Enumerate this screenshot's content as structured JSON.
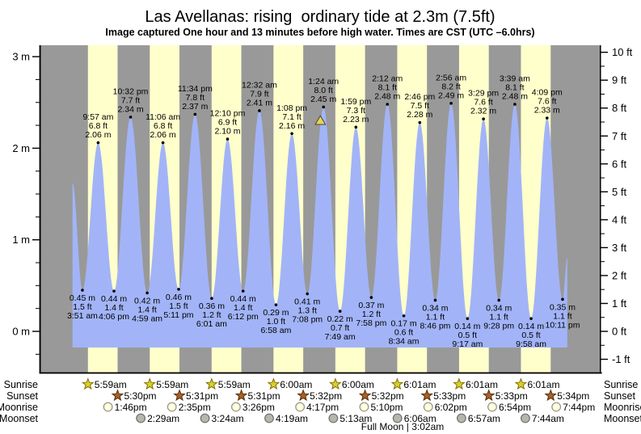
{
  "title": "Las Avellanas: rising  ordinary tide at 2.3m (7.5ft)",
  "subtitle": "Image captured One hour and 13 minutes before high water. Times are CST (UTC –6.0hrs)",
  "chart_data": {
    "type": "area",
    "title": "Las Avellanas: rising  ordinary tide at 2.3m (7.5ft)",
    "days": 8,
    "legend_position": "none",
    "grid": false,
    "ylim_m": [
      -0.46,
      3.13
    ],
    "colors": {
      "night_gray": "#999999",
      "day_yellow": "#ffffcc",
      "tide_fill": "#a2b4f7",
      "marker_yellow": "#e8d44c",
      "axis": "#000000",
      "sunrise_star_fill": "#ddcf2a",
      "sunrise_star_stroke": "#7d7004",
      "sunset_star_fill": "#aa5f28",
      "sunset_star_stroke": "#54300a",
      "moonrise_fill": "#ffffd9",
      "moonrise_stroke": "#8f8f8f",
      "moonset_fill": "#b6b6ad",
      "moonset_stroke": "#6e6e66"
    },
    "y_axis": {
      "left_ticks": [
        {
          "v": 0,
          "label": "0 m"
        },
        {
          "v": 1,
          "label": "1 m"
        },
        {
          "v": 2,
          "label": "2 m"
        },
        {
          "v": 3,
          "label": "3 m"
        }
      ],
      "right_ticks": [
        {
          "v": -1,
          "label": "-1 ft"
        },
        {
          "v": 0,
          "label": "0 ft"
        },
        {
          "v": 1,
          "label": "1 ft"
        },
        {
          "v": 2,
          "label": "2 ft"
        },
        {
          "v": 3,
          "label": "3 ft"
        },
        {
          "v": 4,
          "label": "4 ft"
        },
        {
          "v": 5,
          "label": "5 ft"
        },
        {
          "v": 6,
          "label": "6 ft"
        },
        {
          "v": 7,
          "label": "7 ft"
        },
        {
          "v": 8,
          "label": "8 ft"
        },
        {
          "v": 9,
          "label": "9 ft"
        },
        {
          "v": 10,
          "label": "10 ft"
        }
      ]
    },
    "curve_edge": {
      "start_height_m": 1.62,
      "end_height_m": 0.8
    },
    "current_marker": {
      "day": 4,
      "time": "12:11 am",
      "height_m": 2.3
    },
    "tide_events": [
      {
        "day": 0,
        "type": "low",
        "time": "3:51 am",
        "ft": "1.5 ft",
        "m": "0.45 m"
      },
      {
        "day": 0,
        "type": "high",
        "time": "9:57 am",
        "ft": "6.8 ft",
        "m": "2.06 m"
      },
      {
        "day": 0,
        "type": "low",
        "time": "4:06 pm",
        "ft": "1.4 ft",
        "m": "0.44 m"
      },
      {
        "day": 0,
        "type": "high",
        "time": "10:32 pm",
        "ft": "7.7 ft",
        "m": "2.34 m"
      },
      {
        "day": 1,
        "type": "low",
        "time": "4:59 am",
        "ft": "1.4 ft",
        "m": "0.42 m"
      },
      {
        "day": 1,
        "type": "high",
        "time": "11:06 am",
        "ft": "6.8 ft",
        "m": "2.06 m"
      },
      {
        "day": 1,
        "type": "low",
        "time": "5:11 pm",
        "ft": "1.5 ft",
        "m": "0.46 m"
      },
      {
        "day": 1,
        "type": "high",
        "time": "11:34 pm",
        "ft": "7.8 ft",
        "m": "2.37 m"
      },
      {
        "day": 2,
        "type": "low",
        "time": "6:01 am",
        "ft": "1.2 ft",
        "m": "0.36 m"
      },
      {
        "day": 2,
        "type": "high",
        "time": "12:10 pm",
        "ft": "6.9 ft",
        "m": "2.10 m"
      },
      {
        "day": 2,
        "type": "low",
        "time": "6:12 pm",
        "ft": "1.4 ft",
        "m": "0.44 m"
      },
      {
        "day": 3,
        "type": "high",
        "time": "12:32 am",
        "ft": "7.9 ft",
        "m": "2.41 m"
      },
      {
        "day": 3,
        "type": "low",
        "time": "6:58 am",
        "ft": "1.0 ft",
        "m": "0.29 m"
      },
      {
        "day": 3,
        "type": "high",
        "time": "1:08 pm",
        "ft": "7.1 ft",
        "m": "2.16 m"
      },
      {
        "day": 3,
        "type": "low",
        "time": "7:08 pm",
        "ft": "1.3 ft",
        "m": "0.41 m"
      },
      {
        "day": 4,
        "type": "high",
        "time": "1:24 am",
        "ft": "8.0 ft",
        "m": "2.45 m"
      },
      {
        "day": 4,
        "type": "low",
        "time": "7:49 am",
        "ft": "0.7 ft",
        "m": "0.22 m"
      },
      {
        "day": 4,
        "type": "high",
        "time": "1:59 pm",
        "ft": "7.3 ft",
        "m": "2.23 m"
      },
      {
        "day": 4,
        "type": "low",
        "time": "7:58 pm",
        "ft": "1.2 ft",
        "m": "0.37 m"
      },
      {
        "day": 5,
        "type": "high",
        "time": "2:12 am",
        "ft": "8.1 ft",
        "m": "2.48 m"
      },
      {
        "day": 5,
        "type": "low",
        "time": "8:34 am",
        "ft": "0.6 ft",
        "m": "0.17 m"
      },
      {
        "day": 5,
        "type": "high",
        "time": "2:46 pm",
        "ft": "7.5 ft",
        "m": "2.28 m"
      },
      {
        "day": 5,
        "type": "low",
        "time": "8:46 pm",
        "ft": "1.1 ft",
        "m": "0.34 m"
      },
      {
        "day": 6,
        "type": "high",
        "time": "2:56 am",
        "ft": "8.2 ft",
        "m": "2.49 m"
      },
      {
        "day": 6,
        "type": "low",
        "time": "9:17 am",
        "ft": "0.5 ft",
        "m": "0.14 m"
      },
      {
        "day": 6,
        "type": "high",
        "time": "3:29 pm",
        "ft": "7.6 ft",
        "m": "2.32 m"
      },
      {
        "day": 6,
        "type": "low",
        "time": "9:28 pm",
        "ft": "1.1 ft",
        "m": "0.34 m"
      },
      {
        "day": 7,
        "type": "high",
        "time": "3:39 am",
        "ft": "8.1 ft",
        "m": "2.48 m"
      },
      {
        "day": 7,
        "type": "low",
        "time": "9:58 am",
        "ft": "0.5 ft",
        "m": "0.14 m"
      },
      {
        "day": 7,
        "type": "high",
        "time": "4:09 pm",
        "ft": "7.6 ft",
        "m": "2.33 m"
      },
      {
        "day": 7,
        "type": "low",
        "time": "10:11 pm",
        "ft": "1.1 ft",
        "m": "0.35 m"
      }
    ]
  },
  "almanac": {
    "rows": [
      {
        "id": "sunrise",
        "label": "Sunrise",
        "icon": "sunrise-star",
        "events": [
          {
            "day": 0,
            "time": "5:59am"
          },
          {
            "day": 1,
            "time": "5:59am"
          },
          {
            "day": 2,
            "time": "5:59am"
          },
          {
            "day": 3,
            "time": "6:00am"
          },
          {
            "day": 4,
            "time": "6:00am"
          },
          {
            "day": 5,
            "time": "6:01am"
          },
          {
            "day": 6,
            "time": "6:01am"
          },
          {
            "day": 7,
            "time": "6:01am"
          }
        ]
      },
      {
        "id": "sunset",
        "label": "Sunset",
        "icon": "sunset-star",
        "events": [
          {
            "day": 0,
            "time": "5:30pm"
          },
          {
            "day": 1,
            "time": "5:31pm"
          },
          {
            "day": 2,
            "time": "5:31pm"
          },
          {
            "day": 3,
            "time": "5:32pm"
          },
          {
            "day": 4,
            "time": "5:32pm"
          },
          {
            "day": 5,
            "time": "5:33pm"
          },
          {
            "day": 6,
            "time": "5:33pm"
          },
          {
            "day": 7,
            "time": "5:34pm"
          }
        ]
      },
      {
        "id": "moonrise",
        "label": "Moonrise",
        "icon": "moonrise-circle",
        "events": [
          {
            "day": 0,
            "time": "1:46pm"
          },
          {
            "day": 1,
            "time": "2:35pm"
          },
          {
            "day": 2,
            "time": "3:26pm"
          },
          {
            "day": 3,
            "time": "4:17pm"
          },
          {
            "day": 4,
            "time": "5:10pm"
          },
          {
            "day": 5,
            "time": "6:02pm"
          },
          {
            "day": 6,
            "time": "6:54pm"
          },
          {
            "day": 7,
            "time": "7:44pm"
          }
        ]
      },
      {
        "id": "moonset",
        "label": "Moonset",
        "icon": "moonset-circle",
        "events": [
          {
            "day": 1,
            "time": "2:29am"
          },
          {
            "day": 2,
            "time": "3:24am"
          },
          {
            "day": 3,
            "time": "4:19am"
          },
          {
            "day": 4,
            "time": "5:13am"
          },
          {
            "day": 5,
            "time": "6:06am"
          },
          {
            "day": 6,
            "time": "6:57am"
          },
          {
            "day": 7,
            "time": "7:44am"
          }
        ]
      }
    ],
    "moon_phase": {
      "label": "Full Moon | 3:02am"
    }
  }
}
